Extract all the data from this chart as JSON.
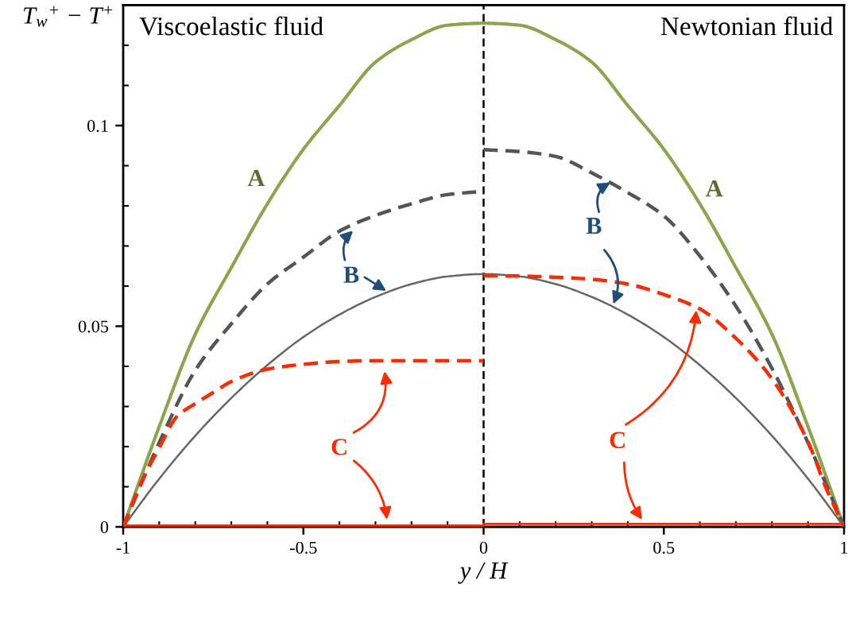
{
  "chart_data": {
    "type": "line",
    "xlabel": "y / H",
    "ylabel": "T$_{w}$$^{+}$ − T$^{+}$",
    "xlim": [
      -1,
      1
    ],
    "ylim": [
      0,
      0.13
    ],
    "xticks": [
      {
        "value": -1,
        "label": "-1"
      },
      {
        "value": -0.9,
        "label": null
      },
      {
        "value": -0.8,
        "label": null
      },
      {
        "value": -0.7,
        "label": null
      },
      {
        "value": -0.6,
        "label": null
      },
      {
        "value": -0.5,
        "label": "-0.5"
      },
      {
        "value": -0.4,
        "label": null
      },
      {
        "value": -0.3,
        "label": null
      },
      {
        "value": -0.2,
        "label": null
      },
      {
        "value": -0.1,
        "label": null
      },
      0,
      {
        "value": 0.1,
        "label": null
      },
      {
        "value": 0.2,
        "label": null
      },
      {
        "value": 0.3,
        "label": null
      },
      {
        "value": 0.4,
        "label": null
      },
      0.5,
      {
        "value": 0.6,
        "label": null
      },
      {
        "value": 0.7,
        "label": null
      },
      {
        "value": 0.8,
        "label": null
      },
      {
        "value": 0.9,
        "label": null
      },
      1
    ],
    "yticks": [
      0,
      {
        "value": 0.01,
        "label": null
      },
      {
        "value": 0.02,
        "label": null
      },
      {
        "value": 0.03,
        "label": null
      },
      {
        "value": 0.04,
        "label": null
      },
      0.05,
      {
        "value": 0.06,
        "label": null
      },
      {
        "value": 0.07,
        "label": null
      },
      {
        "value": 0.08,
        "label": null
      },
      {
        "value": 0.09,
        "label": null
      },
      0.1,
      {
        "value": 0.11,
        "label": null
      },
      {
        "value": 0.12,
        "label": null
      }
    ],
    "series": [
      {
        "color": "#8aa54b",
        "line_style": "solid",
        "x": [
          -1,
          -0.9,
          -0.8,
          -0.7,
          -0.6,
          -0.5,
          -0.4,
          -0.3,
          -0.2,
          -0.1,
          0,
          0.1,
          0.2,
          0.3,
          0.4,
          0.5,
          0.6,
          0.7,
          0.8,
          0.9,
          1
        ],
        "values": [
          0,
          0.025,
          0.048,
          0.0646,
          0.0805,
          0.0941,
          0.105,
          0.1158,
          0.1214,
          0.125,
          0.1255,
          0.125,
          0.1214,
          0.1158,
          0.105,
          0.0941,
          0.0805,
          0.0646,
          0.048,
          0.025,
          0
        ]
      },
      {
        "color": "#555555",
        "line_style": "dashed",
        "x": [
          -1,
          -0.9,
          -0.8,
          -0.7,
          -0.6,
          -0.5,
          -0.4,
          -0.3,
          -0.2,
          -0.1,
          0
        ],
        "values": [
          0,
          0.021,
          0.039,
          0.0506,
          0.0605,
          0.0672,
          0.0737,
          0.0776,
          0.0805,
          0.0828,
          0.0836
        ]
      },
      {
        "color": "#555555",
        "line_style": "dashed",
        "x": [
          0,
          0.1,
          0.2,
          0.3,
          0.4,
          0.5,
          0.6,
          0.7,
          0.8,
          0.9,
          1
        ],
        "values": [
          0.094,
          0.0935,
          0.0923,
          0.0882,
          0.0833,
          0.0775,
          0.0675,
          0.055,
          0.0395,
          0.021,
          0
        ]
      },
      {
        "color": "#666666",
        "line_style": "solid",
        "x": [
          -1,
          -0.9,
          -0.8,
          -0.7,
          -0.6,
          -0.5,
          -0.4,
          -0.3,
          -0.2,
          -0.1,
          0,
          0.1,
          0.2,
          0.3,
          0.4,
          0.5,
          0.6,
          0.7,
          0.8,
          0.9,
          1
        ],
        "values": [
          0,
          0.012,
          0.0227,
          0.0321,
          0.0403,
          0.0473,
          0.0529,
          0.0573,
          0.0605,
          0.0624,
          0.063,
          0.0624,
          0.0605,
          0.0573,
          0.0529,
          0.0473,
          0.0403,
          0.0321,
          0.0227,
          0.012,
          0
        ]
      },
      {
        "color": "#ff2a00",
        "line_style": "dashed",
        "x": [
          -1,
          -0.95,
          -0.9,
          -0.85,
          -0.8,
          -0.75,
          -0.7,
          -0.6,
          -0.5,
          -0.4,
          -0.3,
          -0.2,
          -0.1,
          0
        ],
        "values": [
          0,
          0.011,
          0.0197,
          0.0276,
          0.0307,
          0.0335,
          0.0362,
          0.0393,
          0.0405,
          0.0412,
          0.0414,
          0.0414,
          0.0414,
          0.0414
        ]
      },
      {
        "color": "#ff2a00",
        "line_style": "dashed",
        "x": [
          0,
          0.1,
          0.2,
          0.3,
          0.4,
          0.5,
          0.6,
          0.7,
          0.8,
          0.9,
          0.95,
          1
        ],
        "values": [
          0.0626,
          0.0625,
          0.0622,
          0.0617,
          0.0605,
          0.0579,
          0.0543,
          0.047,
          0.0369,
          0.0212,
          0.0097,
          0
        ]
      },
      {
        "color": "#ff2a00",
        "line_style": "solid",
        "x": [
          -1,
          0
        ],
        "values": [
          0.0003,
          0.0003
        ]
      },
      {
        "color": "#ff2a00",
        "line_style": "solid",
        "x": [
          0,
          1
        ],
        "values": [
          0.0007,
          0.0007
        ]
      }
    ],
    "ref_lines": [
      {
        "axis": "x",
        "value": 0,
        "color": "#000000",
        "line_style": "dashed"
      }
    ],
    "annotations": [
      "Viscoelastic fluid",
      "Newtonian fluid",
      "A",
      "A",
      "B",
      "B",
      "C",
      "C"
    ]
  }
}
